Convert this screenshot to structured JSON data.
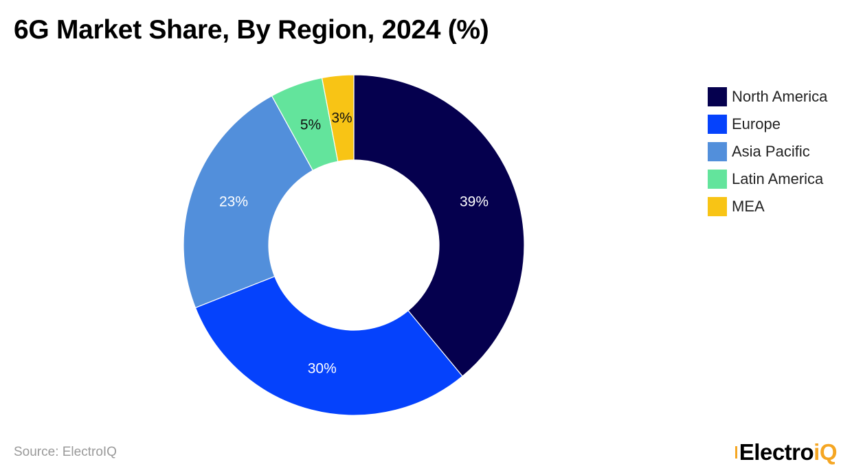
{
  "title": "6G Market Share, By Region, 2024 (%)",
  "source": "Source: ElectroIQ",
  "brand": {
    "main": "Electro",
    "accent": "iQ",
    "accent_color": "#f5a623"
  },
  "chart_data": {
    "type": "donut",
    "title": "6G Market Share, By Region, 2024 (%)",
    "unit": "%",
    "legend_position": "right",
    "start_angle_deg": 0,
    "direction": "clockwise",
    "slices": [
      {
        "label": "North America",
        "value": 39,
        "data_label": "39%",
        "color": "#05004e",
        "label_color": "#ffffff"
      },
      {
        "label": "Europe",
        "value": 30,
        "data_label": "30%",
        "color": "#0542fc",
        "label_color": "#ffffff"
      },
      {
        "label": "Asia Pacific",
        "value": 23,
        "data_label": "23%",
        "color": "#528fdb",
        "label_color": "#ffffff"
      },
      {
        "label": "Latin America",
        "value": 5,
        "data_label": "5%",
        "color": "#63e49c",
        "label_color": "#111111"
      },
      {
        "label": "MEA",
        "value": 3,
        "data_label": "3%",
        "color": "#f8c415",
        "label_color": "#111111"
      }
    ]
  }
}
